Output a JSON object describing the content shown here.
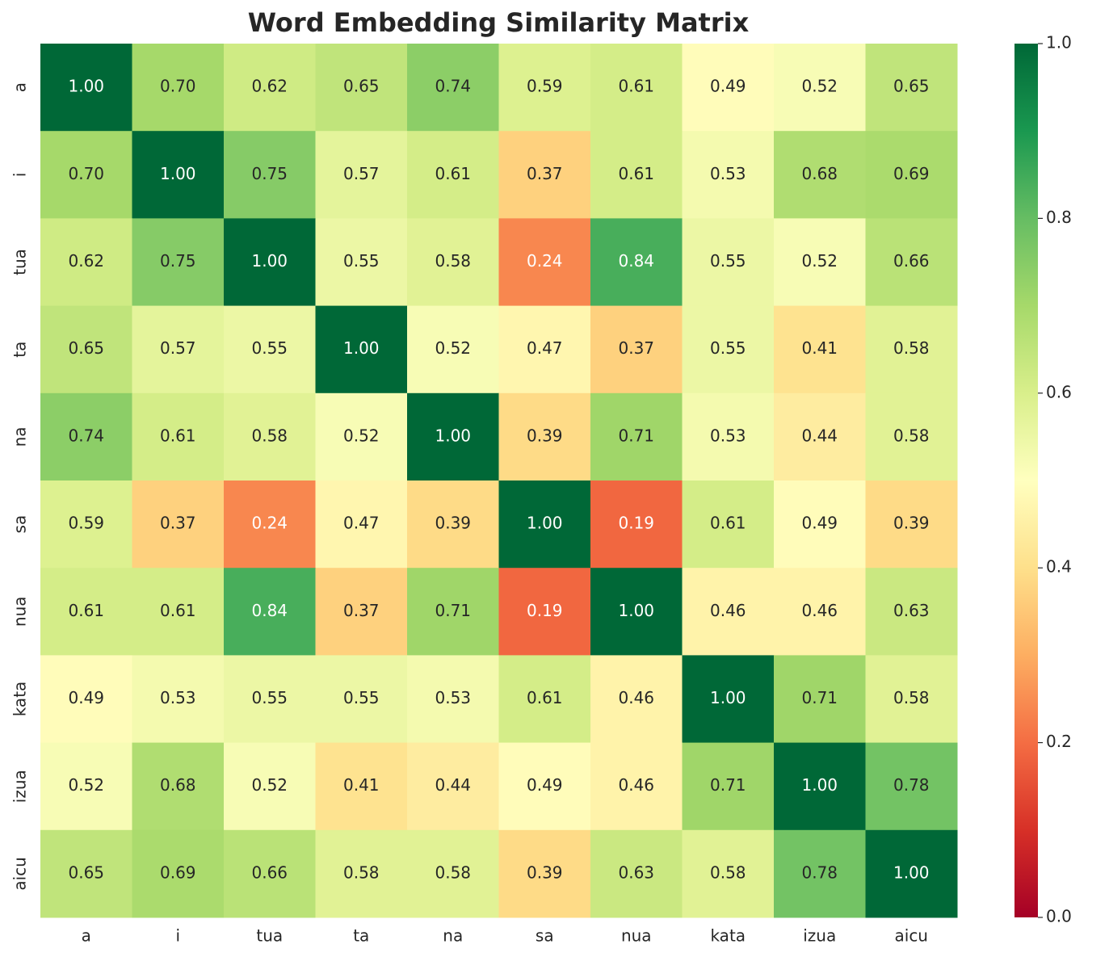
{
  "chart_data": {
    "type": "heatmap",
    "title": "Word Embedding Similarity Matrix",
    "categories": [
      "a",
      "i",
      "tua",
      "ta",
      "na",
      "sa",
      "nua",
      "kata",
      "izua",
      "aicu"
    ],
    "values": [
      [
        1,
        0.7,
        0.62,
        0.65,
        0.74,
        0.59,
        0.61,
        0.49,
        0.52,
        0.65
      ],
      [
        0.7,
        1,
        0.75,
        0.57,
        0.61,
        0.37,
        0.61,
        0.53,
        0.68,
        0.69
      ],
      [
        0.62,
        0.75,
        1,
        0.55,
        0.58,
        0.24,
        0.84,
        0.55,
        0.52,
        0.66
      ],
      [
        0.65,
        0.57,
        0.55,
        1,
        0.52,
        0.47,
        0.37,
        0.55,
        0.41,
        0.58
      ],
      [
        0.74,
        0.61,
        0.58,
        0.52,
        1,
        0.39,
        0.71,
        0.53,
        0.44,
        0.58
      ],
      [
        0.59,
        0.37,
        0.24,
        0.47,
        0.39,
        1,
        0.19,
        0.61,
        0.49,
        0.39
      ],
      [
        0.61,
        0.61,
        0.84,
        0.37,
        0.71,
        0.19,
        1,
        0.46,
        0.46,
        0.63
      ],
      [
        0.49,
        0.53,
        0.55,
        0.55,
        0.53,
        0.61,
        0.46,
        1,
        0.71,
        0.58
      ],
      [
        0.52,
        0.68,
        0.52,
        0.41,
        0.44,
        0.49,
        0.46,
        0.71,
        1,
        0.78
      ],
      [
        0.65,
        0.69,
        0.66,
        0.58,
        0.58,
        0.39,
        0.63,
        0.58,
        0.78,
        1
      ]
    ],
    "value_labels": [
      [
        "1.00",
        "0.70",
        "0.62",
        "0.65",
        "0.74",
        "0.59",
        "0.61",
        "0.49",
        "0.52",
        "0.65"
      ],
      [
        "0.70",
        "1.00",
        "0.75",
        "0.57",
        "0.61",
        "0.37",
        "0.61",
        "0.53",
        "0.68",
        "0.69"
      ],
      [
        "0.62",
        "0.75",
        "1.00",
        "0.55",
        "0.58",
        "0.24",
        "0.84",
        "0.55",
        "0.52",
        "0.66"
      ],
      [
        "0.65",
        "0.57",
        "0.55",
        "1.00",
        "0.52",
        "0.47",
        "0.37",
        "0.55",
        "0.41",
        "0.58"
      ],
      [
        "0.74",
        "0.61",
        "0.58",
        "0.52",
        "1.00",
        "0.39",
        "0.71",
        "0.53",
        "0.44",
        "0.58"
      ],
      [
        "0.59",
        "0.37",
        "0.24",
        "0.47",
        "0.39",
        "1.00",
        "0.19",
        "0.61",
        "0.49",
        "0.39"
      ],
      [
        "0.61",
        "0.61",
        "0.84",
        "0.37",
        "0.71",
        "0.19",
        "1.00",
        "0.46",
        "0.46",
        "0.63"
      ],
      [
        "0.49",
        "0.53",
        "0.55",
        "0.55",
        "0.53",
        "0.61",
        "0.46",
        "1.00",
        "0.71",
        "0.58"
      ],
      [
        "0.52",
        "0.68",
        "0.52",
        "0.41",
        "0.44",
        "0.49",
        "0.46",
        "0.71",
        "1.00",
        "0.78"
      ],
      [
        "0.65",
        "0.69",
        "0.66",
        "0.58",
        "0.58",
        "0.39",
        "0.63",
        "0.58",
        "0.78",
        "1.00"
      ]
    ],
    "zlim": [
      0,
      1
    ],
    "zticks": [
      {
        "value": 0,
        "label": "0.0"
      },
      0.2,
      0.4,
      0.6,
      0.8,
      {
        "value": 1,
        "label": "1.0"
      }
    ],
    "colormap": [
      "#a50026",
      "#d73027",
      "#f46d43",
      "#fdae61",
      "#fee08b",
      "#ffffbf",
      "#d9ef8b",
      "#a6d96a",
      "#66bd63",
      "#1a9850",
      "#006837"
    ]
  }
}
